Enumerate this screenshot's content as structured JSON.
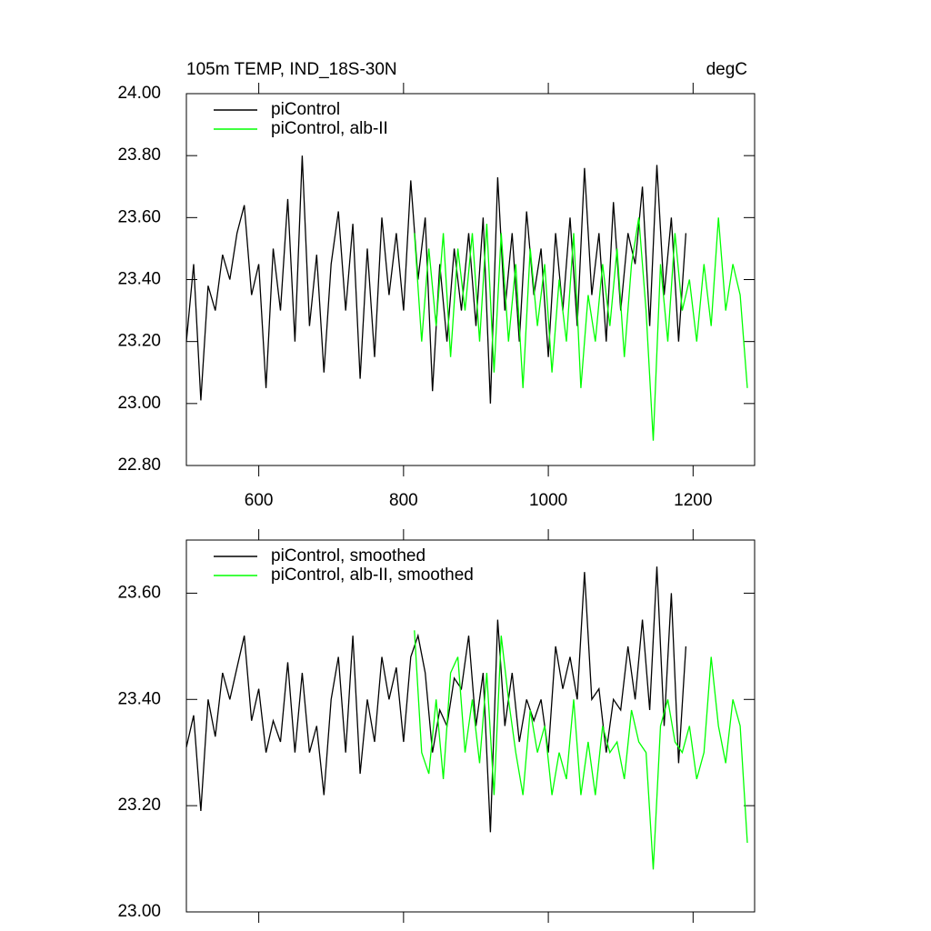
{
  "chart_data": [
    {
      "type": "line",
      "title": "105m TEMP, IND_18S-30N",
      "subtitle": "degC",
      "xlim": [
        500,
        1285
      ],
      "ylim": [
        22.8,
        24.0
      ],
      "xticks": [
        600,
        800,
        1000,
        1200
      ],
      "yticks": [
        {
          "value": 22.8,
          "label": "22.80"
        },
        {
          "value": 23.0,
          "label": "23.00"
        },
        {
          "value": 23.2,
          "label": "23.20"
        },
        {
          "value": 23.4,
          "label": "23.40"
        },
        {
          "value": 23.6,
          "label": "23.60"
        },
        {
          "value": 23.8,
          "label": "23.80"
        },
        {
          "value": 24.0,
          "label": "24.00"
        }
      ],
      "legend": "upper left",
      "series": [
        {
          "name": "piControl",
          "color": "#000000",
          "x": [
            500,
            510,
            520,
            530,
            540,
            550,
            560,
            570,
            580,
            590,
            600,
            610,
            620,
            630,
            640,
            650,
            660,
            670,
            680,
            690,
            700,
            710,
            720,
            730,
            740,
            750,
            760,
            770,
            780,
            790,
            800,
            810,
            820,
            830,
            840,
            850,
            860,
            870,
            880,
            890,
            900,
            910,
            920,
            930,
            940,
            950,
            960,
            970,
            980,
            990,
            1000,
            1010,
            1020,
            1030,
            1040,
            1050,
            1060,
            1070,
            1080,
            1090,
            1100,
            1110,
            1120,
            1130,
            1140,
            1150,
            1160,
            1170,
            1180,
            1190
          ],
          "values": [
            23.2,
            23.45,
            23.01,
            23.38,
            23.3,
            23.48,
            23.4,
            23.55,
            23.64,
            23.35,
            23.45,
            23.05,
            23.5,
            23.3,
            23.66,
            23.2,
            23.8,
            23.25,
            23.48,
            23.1,
            23.45,
            23.62,
            23.3,
            23.58,
            23.08,
            23.5,
            23.15,
            23.6,
            23.35,
            23.55,
            23.3,
            23.72,
            23.4,
            23.6,
            23.04,
            23.45,
            23.2,
            23.5,
            23.3,
            23.55,
            23.25,
            23.6,
            23.0,
            23.73,
            23.3,
            23.55,
            23.2,
            23.62,
            23.35,
            23.5,
            23.15,
            23.55,
            23.3,
            23.6,
            23.25,
            23.76,
            23.35,
            23.55,
            23.2,
            23.65,
            23.3,
            23.55,
            23.45,
            23.7,
            23.25,
            23.77,
            23.35,
            23.6,
            23.2,
            23.55
          ]
        },
        {
          "name": "piControl, alb-II",
          "color": "#00ff00",
          "x": [
            815,
            825,
            835,
            845,
            855,
            865,
            875,
            885,
            895,
            905,
            915,
            925,
            935,
            945,
            955,
            965,
            975,
            985,
            995,
            1005,
            1015,
            1025,
            1035,
            1045,
            1055,
            1065,
            1075,
            1085,
            1095,
            1105,
            1115,
            1125,
            1135,
            1145,
            1155,
            1165,
            1175,
            1185,
            1195,
            1205,
            1215,
            1225,
            1235,
            1245,
            1255,
            1265,
            1275
          ],
          "values": [
            23.55,
            23.2,
            23.5,
            23.25,
            23.55,
            23.15,
            23.5,
            23.3,
            23.55,
            23.2,
            23.58,
            23.1,
            23.55,
            23.2,
            23.45,
            23.05,
            23.5,
            23.25,
            23.45,
            23.1,
            23.4,
            23.2,
            23.55,
            23.05,
            23.35,
            23.2,
            23.45,
            23.25,
            23.5,
            23.15,
            23.45,
            23.6,
            23.3,
            22.88,
            23.45,
            23.2,
            23.55,
            23.3,
            23.4,
            23.2,
            23.45,
            23.25,
            23.6,
            23.3,
            23.45,
            23.35,
            23.05
          ]
        }
      ]
    },
    {
      "type": "line",
      "xlim": [
        500,
        1285
      ],
      "ylim": [
        23.0,
        23.7
      ],
      "xticks": [
        600,
        800,
        1000,
        1200
      ],
      "yticks": [
        {
          "value": 23.0,
          "label": "23.00"
        },
        {
          "value": 23.2,
          "label": "23.20"
        },
        {
          "value": 23.4,
          "label": "23.40"
        },
        {
          "value": 23.6,
          "label": "23.60"
        }
      ],
      "legend": "upper left",
      "series": [
        {
          "name": "piControl, smoothed",
          "color": "#000000",
          "x": [
            500,
            510,
            520,
            530,
            540,
            550,
            560,
            570,
            580,
            590,
            600,
            610,
            620,
            630,
            640,
            650,
            660,
            670,
            680,
            690,
            700,
            710,
            720,
            730,
            740,
            750,
            760,
            770,
            780,
            790,
            800,
            810,
            820,
            830,
            840,
            850,
            860,
            870,
            880,
            890,
            900,
            910,
            920,
            930,
            940,
            950,
            960,
            970,
            980,
            990,
            1000,
            1010,
            1020,
            1030,
            1040,
            1050,
            1060,
            1070,
            1080,
            1090,
            1100,
            1110,
            1120,
            1130,
            1140,
            1150,
            1160,
            1170,
            1180,
            1190
          ],
          "values": [
            23.31,
            23.37,
            23.19,
            23.4,
            23.33,
            23.45,
            23.4,
            23.46,
            23.52,
            23.36,
            23.42,
            23.3,
            23.36,
            23.32,
            23.47,
            23.3,
            23.45,
            23.3,
            23.35,
            23.22,
            23.4,
            23.48,
            23.3,
            23.52,
            23.26,
            23.4,
            23.32,
            23.48,
            23.4,
            23.46,
            23.32,
            23.48,
            23.52,
            23.45,
            23.3,
            23.38,
            23.35,
            23.44,
            23.42,
            23.52,
            23.35,
            23.45,
            23.15,
            23.55,
            23.35,
            23.45,
            23.32,
            23.4,
            23.36,
            23.4,
            23.3,
            23.5,
            23.42,
            23.48,
            23.4,
            23.64,
            23.4,
            23.42,
            23.3,
            23.4,
            23.38,
            23.5,
            23.4,
            23.55,
            23.38,
            23.65,
            23.35,
            23.6,
            23.28,
            23.5
          ]
        },
        {
          "name": "piControl, alb-II, smoothed",
          "color": "#00ff00",
          "x": [
            815,
            825,
            835,
            845,
            855,
            865,
            875,
            885,
            895,
            905,
            915,
            925,
            935,
            945,
            955,
            965,
            975,
            985,
            995,
            1005,
            1015,
            1025,
            1035,
            1045,
            1055,
            1065,
            1075,
            1085,
            1095,
            1105,
            1115,
            1125,
            1135,
            1145,
            1155,
            1165,
            1175,
            1185,
            1195,
            1205,
            1215,
            1225,
            1235,
            1245,
            1255,
            1265,
            1275
          ],
          "values": [
            23.53,
            23.3,
            23.26,
            23.4,
            23.25,
            23.45,
            23.48,
            23.3,
            23.4,
            23.28,
            23.45,
            23.22,
            23.52,
            23.4,
            23.3,
            23.22,
            23.38,
            23.3,
            23.35,
            23.22,
            23.3,
            23.25,
            23.4,
            23.22,
            23.32,
            23.22,
            23.35,
            23.3,
            23.32,
            23.25,
            23.38,
            23.32,
            23.3,
            23.08,
            23.35,
            23.4,
            23.32,
            23.3,
            23.35,
            23.25,
            23.3,
            23.48,
            23.35,
            23.28,
            23.4,
            23.35,
            23.13
          ]
        }
      ]
    }
  ]
}
